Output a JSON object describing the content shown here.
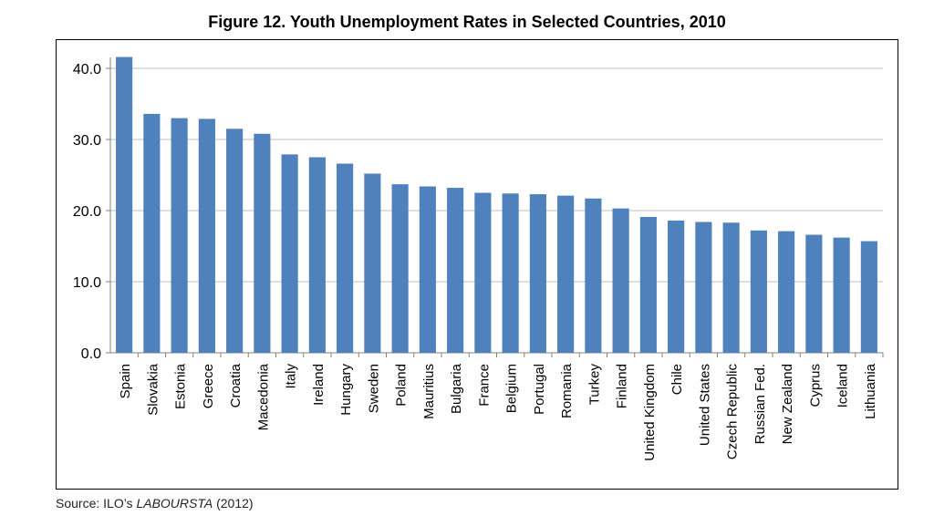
{
  "title": "Figure 12. Youth Unemployment Rates in Selected Countries, 2010",
  "source": {
    "prefix": "Source: ILO’s ",
    "italic": "LABOURSTA",
    "suffix": " (2012)"
  },
  "colors": {
    "bar": "#4f81bd",
    "grid": "#bfbfbf",
    "axis": "#808080"
  },
  "chart_data": {
    "type": "bar",
    "title": "Figure 12. Youth Unemployment Rates in Selected Countries, 2010",
    "xlabel": "",
    "ylabel": "",
    "ylim": [
      0,
      40
    ],
    "yticks": [
      "0.0",
      "10.0",
      "20.0",
      "30.0",
      "40.0"
    ],
    "grid": true,
    "legend": "none",
    "categories": [
      "Spain",
      "Slovakia",
      "Estonia",
      "Greece",
      "Croatia",
      "Macedonia",
      "Italy",
      "Ireland",
      "Hungary",
      "Sweden",
      "Poland",
      "Mauritius",
      "Bulgaria",
      "France",
      "Belgium",
      "Portugal",
      "Romania",
      "Turkey",
      "Finland",
      "United Kingdom",
      "Chile",
      "United States",
      "Czech Republic",
      "Russian Fed.",
      "New Zealand",
      "Cyprus",
      "Iceland",
      "Lithuania"
    ],
    "values": [
      41.6,
      33.6,
      33.0,
      32.9,
      31.5,
      30.8,
      27.9,
      27.5,
      26.6,
      25.2,
      23.7,
      23.4,
      23.2,
      22.5,
      22.4,
      22.3,
      22.1,
      21.7,
      20.3,
      19.1,
      18.6,
      18.4,
      18.3,
      17.2,
      17.1,
      16.6,
      16.2,
      15.7
    ]
  }
}
